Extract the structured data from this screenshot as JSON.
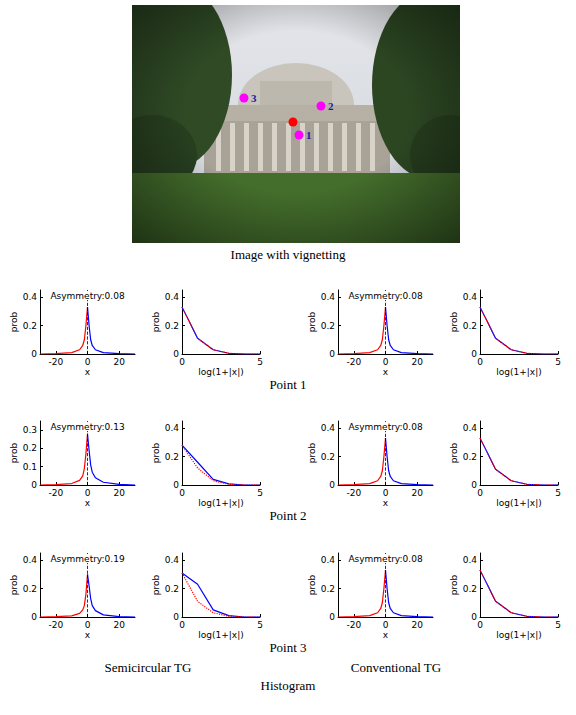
{
  "image": {
    "caption": "Image with vignetting",
    "point_labels": [
      "1",
      "2",
      "3"
    ]
  },
  "row_captions": [
    "Point 1",
    "Point 2",
    "Point 3"
  ],
  "column_captions": [
    "Semicircular TG",
    "Conventional TG"
  ],
  "figure_caption": "Histogram",
  "chart_data": [
    {
      "type": "line",
      "annotation": "Asymmetry:0.08",
      "x_label": "x",
      "y_label": "prob",
      "xlim": [
        -30,
        30
      ],
      "xticks": [
        -20,
        0,
        20
      ],
      "ylim": [
        0,
        0.45
      ],
      "yticks": [
        0,
        0.2,
        0.4
      ],
      "vline": 0,
      "series": [
        {
          "color": "#ff0000",
          "x": [
            -30,
            -20,
            -10,
            -5,
            -3,
            -2,
            -1,
            0
          ],
          "values": [
            0,
            0.002,
            0.01,
            0.03,
            0.06,
            0.1,
            0.2,
            0.33
          ]
        },
        {
          "color": "#0000ff",
          "x": [
            0,
            1,
            2,
            3,
            5,
            10,
            20,
            30
          ],
          "values": [
            0.33,
            0.2,
            0.1,
            0.06,
            0.03,
            0.01,
            0.002,
            0
          ]
        }
      ]
    },
    {
      "type": "line",
      "x_label": "log(1+|x|)",
      "y_label": "prob",
      "xlim": [
        0,
        5
      ],
      "xticks": [
        0,
        5
      ],
      "ylim": [
        0,
        0.45
      ],
      "yticks": [
        0,
        0.2,
        0.4
      ],
      "series": [
        {
          "color": "#0000ff",
          "line_style": "solid",
          "x": [
            0,
            1,
            2,
            3,
            4,
            5
          ],
          "values": [
            0.33,
            0.11,
            0.03,
            0.005,
            0,
            0
          ]
        },
        {
          "color": "#ff0000",
          "line_style": "dotted",
          "x": [
            0,
            1,
            2,
            3,
            4,
            5
          ],
          "values": [
            0.33,
            0.11,
            0.03,
            0.005,
            0,
            0
          ]
        }
      ]
    },
    {
      "type": "line",
      "annotation": "Asymmetry:0.08",
      "x_label": "x",
      "y_label": "prob",
      "xlim": [
        -30,
        30
      ],
      "xticks": [
        -20,
        0,
        20
      ],
      "ylim": [
        0,
        0.45
      ],
      "yticks": [
        0,
        0.2,
        0.4
      ],
      "vline": 0,
      "series": [
        {
          "color": "#ff0000",
          "x": [
            -30,
            -20,
            -10,
            -5,
            -3,
            -2,
            -1,
            0
          ],
          "values": [
            0,
            0.002,
            0.01,
            0.03,
            0.06,
            0.1,
            0.2,
            0.33
          ]
        },
        {
          "color": "#0000ff",
          "x": [
            0,
            1,
            2,
            3,
            5,
            10,
            20,
            30
          ],
          "values": [
            0.33,
            0.2,
            0.1,
            0.06,
            0.03,
            0.01,
            0.002,
            0
          ]
        }
      ]
    },
    {
      "type": "line",
      "x_label": "log(1+|x|)",
      "y_label": "prob",
      "xlim": [
        0,
        5
      ],
      "xticks": [
        0,
        5
      ],
      "ylim": [
        0,
        0.45
      ],
      "yticks": [
        0,
        0.2,
        0.4
      ],
      "series": [
        {
          "color": "#0000ff",
          "line_style": "solid",
          "x": [
            0,
            1,
            2,
            3,
            4,
            5
          ],
          "values": [
            0.33,
            0.11,
            0.03,
            0.005,
            0,
            0
          ]
        },
        {
          "color": "#ff0000",
          "line_style": "dotted",
          "x": [
            0,
            1,
            2,
            3,
            4,
            5
          ],
          "values": [
            0.33,
            0.11,
            0.03,
            0.005,
            0,
            0
          ]
        }
      ]
    },
    {
      "type": "line",
      "annotation": "Asymmetry:0.13",
      "x_label": "x",
      "y_label": "prob",
      "xlim": [
        -30,
        30
      ],
      "xticks": [
        -20,
        0,
        20
      ],
      "ylim": [
        0,
        0.35
      ],
      "yticks": [
        0,
        0.1,
        0.2,
        0.3
      ],
      "vline": 0,
      "series": [
        {
          "color": "#ff0000",
          "x": [
            -30,
            -20,
            -10,
            -5,
            -3,
            -2,
            -1,
            0
          ],
          "values": [
            0,
            0.002,
            0.008,
            0.025,
            0.05,
            0.09,
            0.17,
            0.28
          ]
        },
        {
          "color": "#0000ff",
          "x": [
            0,
            1,
            2,
            3,
            5,
            10,
            20,
            30
          ],
          "values": [
            0.28,
            0.19,
            0.11,
            0.07,
            0.04,
            0.015,
            0.003,
            0
          ]
        }
      ]
    },
    {
      "type": "line",
      "x_label": "log(1+|x|)",
      "y_label": "prob",
      "xlim": [
        0,
        5
      ],
      "xticks": [
        0,
        5
      ],
      "ylim": [
        0,
        0.45
      ],
      "yticks": [
        0,
        0.2,
        0.4
      ],
      "series": [
        {
          "color": "#0000ff",
          "line_style": "solid",
          "x": [
            0,
            1,
            2,
            3,
            4,
            5
          ],
          "values": [
            0.28,
            0.16,
            0.04,
            0.008,
            0,
            0
          ]
        },
        {
          "color": "#ff0000",
          "line_style": "dotted",
          "x": [
            0,
            1,
            2,
            3,
            4,
            5
          ],
          "values": [
            0.28,
            0.12,
            0.03,
            0.005,
            0,
            0
          ]
        }
      ]
    },
    {
      "type": "line",
      "annotation": "Asymmetry:0.08",
      "x_label": "x",
      "y_label": "prob",
      "xlim": [
        -30,
        30
      ],
      "xticks": [
        -20,
        0,
        20
      ],
      "ylim": [
        0,
        0.45
      ],
      "yticks": [
        0,
        0.2,
        0.4
      ],
      "vline": 0,
      "series": [
        {
          "color": "#ff0000",
          "x": [
            -30,
            -20,
            -10,
            -5,
            -3,
            -2,
            -1,
            0
          ],
          "values": [
            0,
            0.002,
            0.01,
            0.03,
            0.06,
            0.1,
            0.2,
            0.33
          ]
        },
        {
          "color": "#0000ff",
          "x": [
            0,
            1,
            2,
            3,
            5,
            10,
            20,
            30
          ],
          "values": [
            0.33,
            0.2,
            0.1,
            0.06,
            0.03,
            0.01,
            0.002,
            0
          ]
        }
      ]
    },
    {
      "type": "line",
      "x_label": "log(1+|x|)",
      "y_label": "prob",
      "xlim": [
        0,
        5
      ],
      "xticks": [
        0,
        5
      ],
      "ylim": [
        0,
        0.45
      ],
      "yticks": [
        0,
        0.2,
        0.4
      ],
      "series": [
        {
          "color": "#0000ff",
          "line_style": "solid",
          "x": [
            0,
            1,
            2,
            3,
            4,
            5
          ],
          "values": [
            0.33,
            0.11,
            0.03,
            0.005,
            0,
            0
          ]
        },
        {
          "color": "#ff0000",
          "line_style": "dotted",
          "x": [
            0,
            1,
            2,
            3,
            4,
            5
          ],
          "values": [
            0.33,
            0.11,
            0.03,
            0.005,
            0,
            0
          ]
        }
      ]
    },
    {
      "type": "line",
      "annotation": "Asymmetry:0.19",
      "x_label": "x",
      "y_label": "prob",
      "xlim": [
        -30,
        30
      ],
      "xticks": [
        -20,
        0,
        20
      ],
      "ylim": [
        0,
        0.45
      ],
      "yticks": [
        0,
        0.2,
        0.4
      ],
      "vline": 0,
      "series": [
        {
          "color": "#ff0000",
          "x": [
            -30,
            -20,
            -10,
            -5,
            -3,
            -2,
            -1,
            0
          ],
          "values": [
            0,
            0.002,
            0.008,
            0.025,
            0.05,
            0.08,
            0.16,
            0.3
          ]
        },
        {
          "color": "#0000ff",
          "x": [
            0,
            1,
            2,
            3,
            5,
            10,
            20,
            30
          ],
          "values": [
            0.3,
            0.22,
            0.13,
            0.08,
            0.045,
            0.015,
            0.003,
            0
          ]
        }
      ]
    },
    {
      "type": "line",
      "x_label": "log(1+|x|)",
      "y_label": "prob",
      "xlim": [
        0,
        5
      ],
      "xticks": [
        0,
        5
      ],
      "ylim": [
        0,
        0.45
      ],
      "yticks": [
        0,
        0.2,
        0.4
      ],
      "series": [
        {
          "color": "#0000ff",
          "line_style": "solid",
          "x": [
            0,
            1,
            2,
            3,
            4,
            5
          ],
          "values": [
            0.31,
            0.23,
            0.05,
            0.01,
            0,
            0
          ]
        },
        {
          "color": "#ff0000",
          "line_style": "dotted",
          "x": [
            0,
            1,
            2,
            3,
            4,
            5
          ],
          "values": [
            0.31,
            0.11,
            0.03,
            0.005,
            0,
            0
          ]
        }
      ]
    },
    {
      "type": "line",
      "annotation": "Asymmetry:0.08",
      "x_label": "x",
      "y_label": "prob",
      "xlim": [
        -30,
        30
      ],
      "xticks": [
        -20,
        0,
        20
      ],
      "ylim": [
        0,
        0.45
      ],
      "yticks": [
        0,
        0.2,
        0.4
      ],
      "vline": 0,
      "series": [
        {
          "color": "#ff0000",
          "x": [
            -30,
            -20,
            -10,
            -5,
            -3,
            -2,
            -1,
            0
          ],
          "values": [
            0,
            0.002,
            0.01,
            0.03,
            0.06,
            0.1,
            0.2,
            0.33
          ]
        },
        {
          "color": "#0000ff",
          "x": [
            0,
            1,
            2,
            3,
            5,
            10,
            20,
            30
          ],
          "values": [
            0.33,
            0.2,
            0.1,
            0.06,
            0.03,
            0.01,
            0.002,
            0
          ]
        }
      ]
    },
    {
      "type": "line",
      "x_label": "log(1+|x|)",
      "y_label": "prob",
      "xlim": [
        0,
        5
      ],
      "xticks": [
        0,
        5
      ],
      "ylim": [
        0,
        0.45
      ],
      "yticks": [
        0,
        0.2,
        0.4
      ],
      "series": [
        {
          "color": "#0000ff",
          "line_style": "solid",
          "x": [
            0,
            1,
            2,
            3,
            4,
            5
          ],
          "values": [
            0.33,
            0.11,
            0.03,
            0.005,
            0,
            0
          ]
        },
        {
          "color": "#ff0000",
          "line_style": "dotted",
          "x": [
            0,
            1,
            2,
            3,
            4,
            5
          ],
          "values": [
            0.33,
            0.11,
            0.03,
            0.005,
            0,
            0
          ]
        }
      ]
    }
  ]
}
